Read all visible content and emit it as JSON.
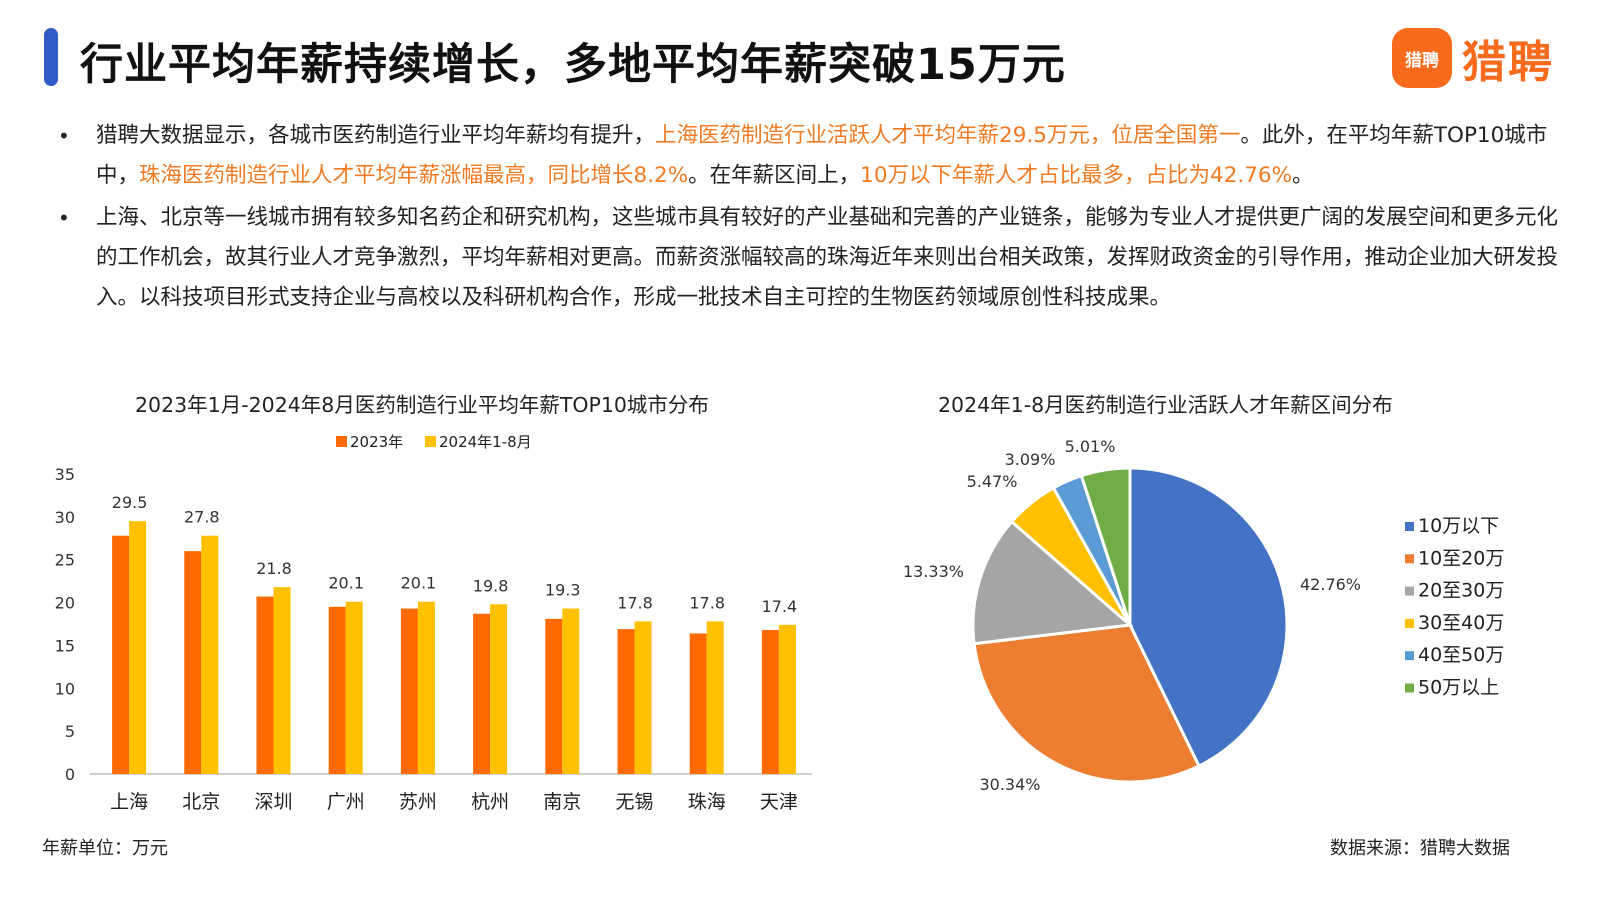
{
  "header": {
    "title": "行业平均年薪持续增长，多地平均年薪突破15万元",
    "logo_mark": "猎聘",
    "logo_text": "猎聘"
  },
  "bullets": [
    {
      "segments": [
        {
          "text": "猎聘大数据显示，各城市医药制造行业平均年薪均有提升，",
          "highlight": false
        },
        {
          "text": "上海医药制造行业活跃人才平均年薪29.5万元，位居全国第一",
          "highlight": true
        },
        {
          "text": "。此外，在平均年薪TOP10城市中，",
          "highlight": false
        },
        {
          "text": "珠海医药制造行业人才平均年薪涨幅最高，同比增长8.2%",
          "highlight": true
        },
        {
          "text": "。在年薪区间上，",
          "highlight": false
        },
        {
          "text": "10万以下年薪人才占比最多，占比为42.76%",
          "highlight": true
        },
        {
          "text": "。",
          "highlight": false
        }
      ]
    },
    {
      "segments": [
        {
          "text": "上海、北京等一线城市拥有较多知名药企和研究机构，这些城市具有较好的产业基础和完善的产业链条，能够为专业人才提供更广阔的发展空间和更多元化的工作机会，故其行业人才竞争激烈，平均年薪相对更高。而薪资涨幅较高的珠海近年来则出台相关政策，发挥财政资金的引导作用，推动企业加大研发投入。以科技项目形式支持企业与高校以及科研机构合作，形成一批技术自主可控的生物医药领域原创性科技成果。",
          "highlight": false
        }
      ]
    }
  ],
  "colors": {
    "accent": "#2f5cc7",
    "brand": "#f86b1d",
    "highlight_text": "#f07b22"
  },
  "chart_data": [
    {
      "type": "bar",
      "title": "2023年1月-2024年8月医药制造行业平均年薪TOP10城市分布",
      "categories": [
        "上海",
        "北京",
        "深圳",
        "广州",
        "苏州",
        "杭州",
        "南京",
        "无锡",
        "珠海",
        "天津"
      ],
      "series": [
        {
          "name": "2023年",
          "color": "#ff6a00",
          "values": [
            27.8,
            26.0,
            20.7,
            19.5,
            19.3,
            18.7,
            18.1,
            16.9,
            16.4,
            16.8
          ]
        },
        {
          "name": "2024年1-8月",
          "color": "#ffc000",
          "values": [
            29.5,
            27.8,
            21.8,
            20.1,
            20.1,
            19.8,
            19.3,
            17.8,
            17.8,
            17.4
          ],
          "data_labels": [
            "29.5",
            "27.8",
            "21.8",
            "20.1",
            "20.1",
            "19.8",
            "19.3",
            "17.8",
            "17.8",
            "17.4"
          ]
        }
      ],
      "ylim": [
        0,
        35
      ],
      "yticks": [
        "0",
        "5",
        "10",
        "15",
        "20",
        "25",
        "30",
        "35"
      ],
      "legend_position": "top",
      "grid": false
    },
    {
      "type": "pie",
      "title": "2024年1-8月医药制造行业活跃人才年薪区间分布",
      "slices": [
        {
          "label": "10万以下",
          "value": 42.76,
          "display": "42.76%",
          "color": "#4472c4"
        },
        {
          "label": "10至20万",
          "value": 30.34,
          "display": "30.34%",
          "color": "#ed7d31"
        },
        {
          "label": "20至30万",
          "value": 13.33,
          "display": "13.33%",
          "color": "#a5a5a5"
        },
        {
          "label": "30至40万",
          "value": 5.47,
          "display": "5.47%",
          "color": "#ffc000"
        },
        {
          "label": "40至50万",
          "value": 3.09,
          "display": "3.09%",
          "color": "#5b9bd5"
        },
        {
          "label": "50万以上",
          "value": 5.01,
          "display": "5.01%",
          "color": "#70ad47"
        }
      ],
      "legend_position": "right"
    }
  ],
  "footer": {
    "unit": "年薪单位：万元",
    "source": "数据来源：猎聘大数据"
  }
}
